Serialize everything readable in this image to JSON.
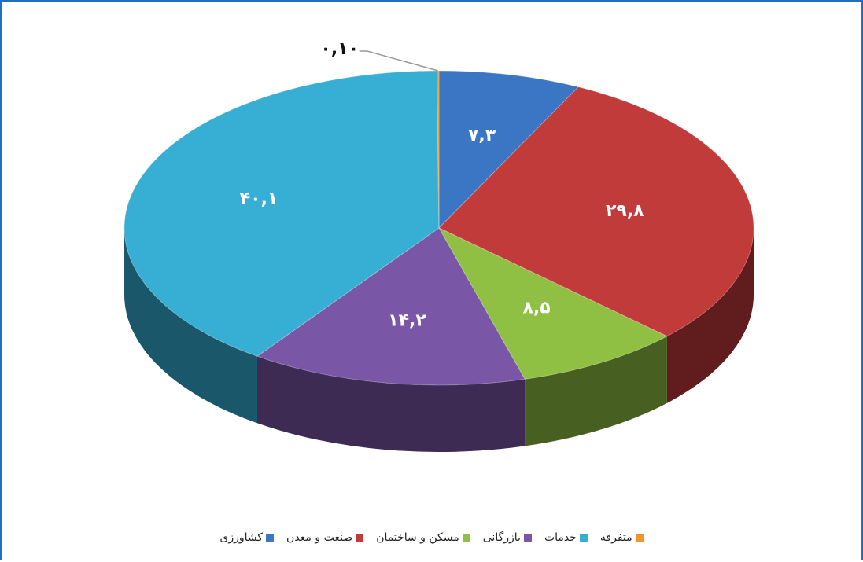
{
  "chart_data": {
    "type": "pie3d",
    "categories": [
      "کشاورزی",
      "صنعت و معدن",
      "مسکن و ساختمان",
      "بازرگانی",
      "خدمات",
      "متفرقه"
    ],
    "values": [
      7.3,
      29.8,
      8.5,
      14.2,
      40.1,
      0.1
    ],
    "value_labels": [
      "۷,۳",
      "۲۹,۸",
      "۸,۵",
      "۱۴,۲",
      "۴۰,۱",
      "۰,۱۰"
    ],
    "colors": [
      "#3a76c4",
      "#c23b3b",
      "#8fc043",
      "#7a56a6",
      "#37afd4",
      "#f0962a"
    ],
    "legend": "bottom"
  }
}
